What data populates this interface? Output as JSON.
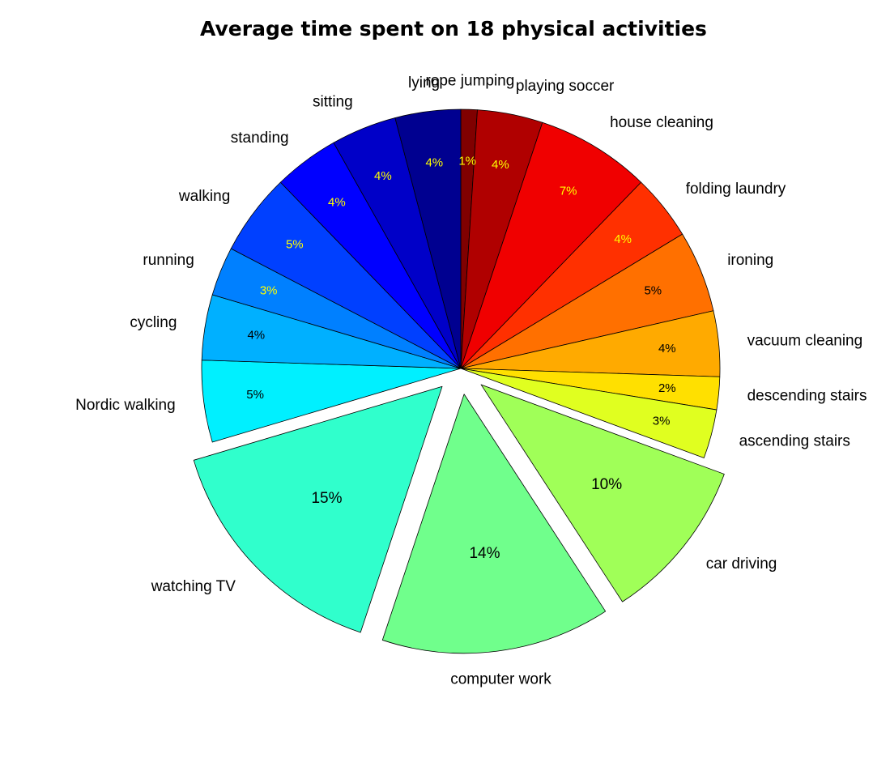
{
  "chart_data": {
    "type": "pie",
    "title": "Average time spent on 18 physical activities",
    "slices": [
      {
        "label": "rope jumping",
        "value": 1,
        "pct_label": "1%",
        "color": "#800000",
        "exploded": false
      },
      {
        "label": "playing soccer",
        "value": 4,
        "pct_label": "4%",
        "color": "#b00000",
        "exploded": false
      },
      {
        "label": "house cleaning",
        "value": 7,
        "pct_label": "7%",
        "color": "#f00000",
        "exploded": false
      },
      {
        "label": "folding laundry",
        "value": 4,
        "pct_label": "4%",
        "color": "#ff3000",
        "exploded": false
      },
      {
        "label": "ironing",
        "value": 5,
        "pct_label": "5%",
        "color": "#ff7000",
        "exploded": false
      },
      {
        "label": "vacuum cleaning",
        "value": 4,
        "pct_label": "4%",
        "color": "#ffaa00",
        "exploded": false
      },
      {
        "label": "descending stairs",
        "value": 2,
        "pct_label": "2%",
        "color": "#ffe000",
        "exploded": false
      },
      {
        "label": "ascending stairs",
        "value": 3,
        "pct_label": "3%",
        "color": "#e0ff20",
        "exploded": false
      },
      {
        "label": "car driving",
        "value": 10,
        "pct_label": "10%",
        "color": "#a0ff58",
        "exploded": true
      },
      {
        "label": "computer work",
        "value": 14,
        "pct_label": "14%",
        "color": "#70ff8c",
        "exploded": true
      },
      {
        "label": "watching TV",
        "value": 15,
        "pct_label": "15%",
        "color": "#30ffcc",
        "exploded": true
      },
      {
        "label": "Nordic walking",
        "value": 5,
        "pct_label": "5%",
        "color": "#00f0ff",
        "exploded": false
      },
      {
        "label": "cycling",
        "value": 4,
        "pct_label": "4%",
        "color": "#00b0ff",
        "exploded": false
      },
      {
        "label": "running",
        "value": 3,
        "pct_label": "3%",
        "color": "#0080ff",
        "exploded": false
      },
      {
        "label": "walking",
        "value": 5,
        "pct_label": "5%",
        "color": "#0040ff",
        "exploded": false
      },
      {
        "label": "standing",
        "value": 4,
        "pct_label": "4%",
        "color": "#0000ff",
        "exploded": false
      },
      {
        "label": "sitting",
        "value": 4,
        "pct_label": "4%",
        "color": "#0000c8",
        "exploded": false
      },
      {
        "label": "lying",
        "value": 4,
        "pct_label": "4%",
        "color": "#000090",
        "exploded": false
      }
    ]
  }
}
